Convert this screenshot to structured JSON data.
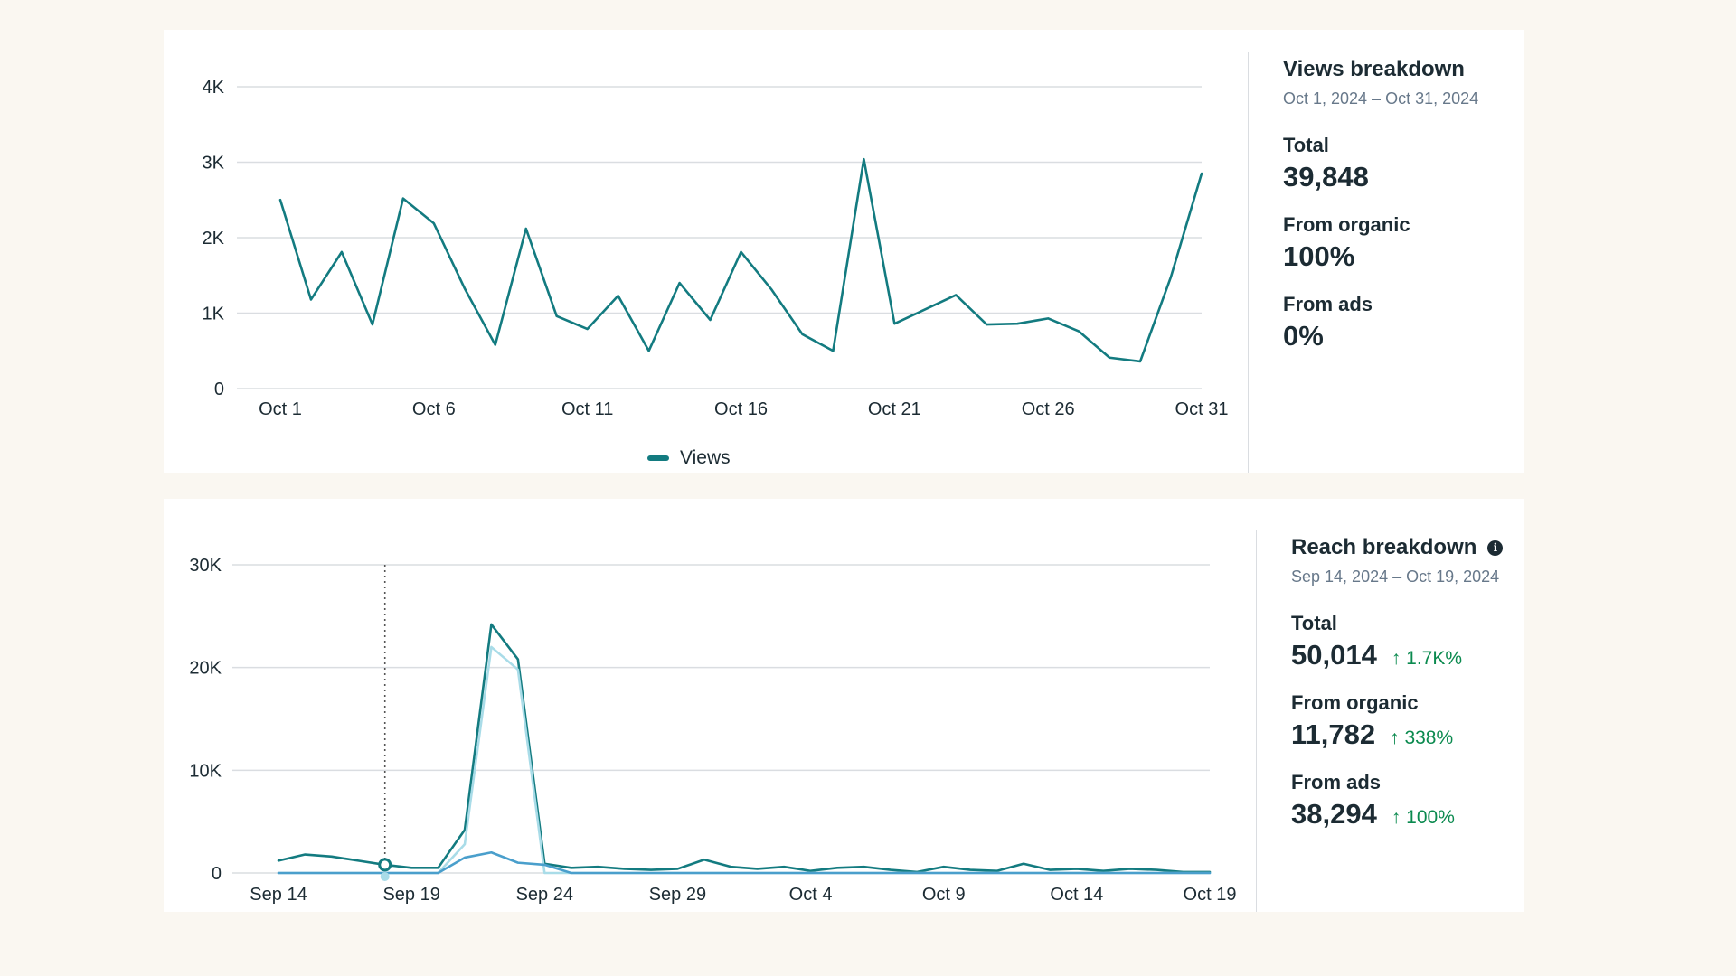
{
  "views_breakdown": {
    "title": "Views breakdown",
    "date_range": "Oct 1, 2024 – Oct 31, 2024",
    "metrics": [
      {
        "label": "Total",
        "value": "39,848"
      },
      {
        "label": "From organic",
        "value": "100%"
      },
      {
        "label": "From ads",
        "value": "0%"
      }
    ]
  },
  "reach_breakdown": {
    "title": "Reach breakdown",
    "info_icon": "info-icon",
    "date_range": "Sep 14, 2024 – Oct 19, 2024",
    "metrics": [
      {
        "label": "Total",
        "value": "50,014",
        "change": "↑ 1.7K%"
      },
      {
        "label": "From organic",
        "value": "11,782",
        "change": "↑ 338%"
      },
      {
        "label": "From ads",
        "value": "38,294",
        "change": "↑ 100%"
      }
    ]
  },
  "colors": {
    "views_line": "#137b80",
    "reach_total": "#137b80",
    "reach_ads": "#a9dce8",
    "reach_organic": "#4a9fcc",
    "grid": "#dadde1",
    "positive_change": "#0b8a4f"
  },
  "chart_data": [
    {
      "type": "line",
      "legend": [
        "Views"
      ],
      "ylim": [
        0,
        4000
      ],
      "yticks": [
        0,
        1000,
        2000,
        3000,
        4000
      ],
      "ytick_labels": [
        "0",
        "1K",
        "2K",
        "3K",
        "4K"
      ],
      "xtick_labels": [
        "Oct 1",
        "Oct 6",
        "Oct 11",
        "Oct 16",
        "Oct 21",
        "Oct 26",
        "Oct 31"
      ],
      "xtick_index": [
        0,
        5,
        10,
        15,
        20,
        25,
        30
      ],
      "x": [
        "Oct 1",
        "Oct 2",
        "Oct 3",
        "Oct 4",
        "Oct 5",
        "Oct 6",
        "Oct 7",
        "Oct 8",
        "Oct 9",
        "Oct 10",
        "Oct 11",
        "Oct 12",
        "Oct 13",
        "Oct 14",
        "Oct 15",
        "Oct 16",
        "Oct 17",
        "Oct 18",
        "Oct 19",
        "Oct 20",
        "Oct 21",
        "Oct 22",
        "Oct 23",
        "Oct 24",
        "Oct 25",
        "Oct 26",
        "Oct 27",
        "Oct 28",
        "Oct 29",
        "Oct 30",
        "Oct 31"
      ],
      "series": [
        {
          "name": "Views",
          "values": [
            2500,
            1180,
            1810,
            850,
            2520,
            2190,
            1330,
            580,
            2120,
            960,
            790,
            1230,
            500,
            1400,
            910,
            1810,
            1310,
            720,
            500,
            3040,
            860,
            1050,
            1240,
            850,
            860,
            930,
            760,
            410,
            360,
            1480,
            2850
          ]
        }
      ]
    },
    {
      "type": "line",
      "ylim": [
        0,
        30000
      ],
      "yticks": [
        0,
        10000,
        20000,
        30000
      ],
      "ytick_labels": [
        "0",
        "10K",
        "20K",
        "30K"
      ],
      "xtick_labels": [
        "Sep 14",
        "Sep 19",
        "Sep 24",
        "Sep 29",
        "Oct 4",
        "Oct 9",
        "Oct 14",
        "Oct 19"
      ],
      "xtick_index": [
        0,
        5,
        10,
        15,
        20,
        25,
        30,
        35
      ],
      "x": [
        "Sep 14",
        "Sep 15",
        "Sep 16",
        "Sep 17",
        "Sep 18",
        "Sep 19",
        "Sep 20",
        "Sep 21",
        "Sep 22",
        "Sep 23",
        "Sep 24",
        "Sep 25",
        "Sep 26",
        "Sep 27",
        "Sep 28",
        "Sep 29",
        "Sep 30",
        "Oct 1",
        "Oct 2",
        "Oct 3",
        "Oct 4",
        "Oct 5",
        "Oct 6",
        "Oct 7",
        "Oct 8",
        "Oct 9",
        "Oct 10",
        "Oct 11",
        "Oct 12",
        "Oct 13",
        "Oct 14",
        "Oct 15",
        "Oct 16",
        "Oct 17",
        "Oct 18",
        "Oct 19"
      ],
      "highlight_x": "Sep 18",
      "series": [
        {
          "key": "total",
          "values": [
            1200,
            1800,
            1600,
            1200,
            800,
            500,
            500,
            4200,
            24200,
            20800,
            900,
            500,
            600,
            400,
            300,
            400,
            1300,
            600,
            400,
            600,
            200,
            500,
            600,
            300,
            100,
            600,
            300,
            200,
            900,
            300,
            400,
            200,
            400,
            300,
            100,
            100
          ]
        },
        {
          "key": "ads",
          "values": [
            0,
            0,
            0,
            0,
            0,
            0,
            0,
            2800,
            22000,
            19800,
            0,
            0,
            0,
            0,
            0,
            0,
            0,
            0,
            0,
            0,
            0,
            0,
            0,
            0,
            0,
            0,
            0,
            0,
            0,
            0,
            0,
            0,
            0,
            0,
            0,
            0
          ]
        },
        {
          "key": "organic",
          "values": [
            0,
            0,
            0,
            0,
            0,
            0,
            0,
            1500,
            2000,
            1000,
            800,
            0,
            0,
            0,
            0,
            0,
            0,
            0,
            0,
            0,
            0,
            0,
            0,
            0,
            0,
            0,
            0,
            0,
            0,
            0,
            0,
            0,
            0,
            0,
            0,
            0
          ]
        }
      ]
    }
  ]
}
